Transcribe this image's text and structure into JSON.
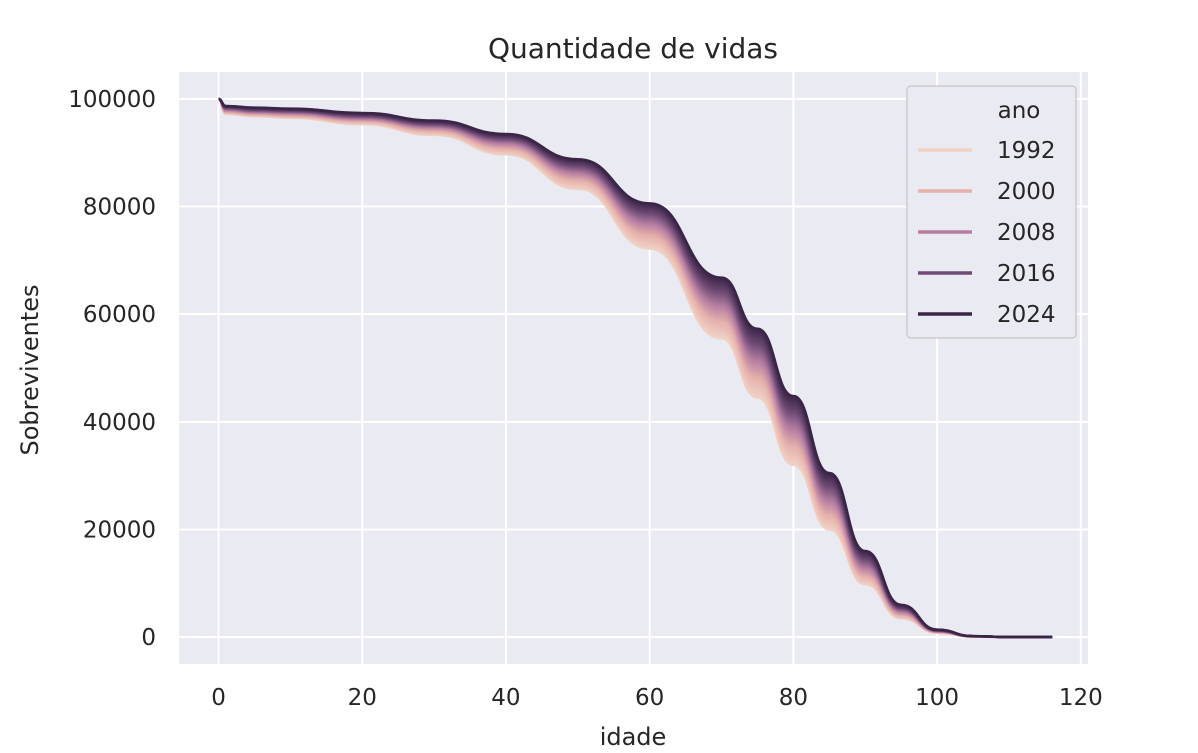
{
  "chart_data": {
    "type": "line",
    "title": "Quantidade de vidas",
    "xlabel": "idade",
    "ylabel": "Sobreviventes",
    "xlim": [
      -5.5,
      121
    ],
    "ylim": [
      -5000,
      105000
    ],
    "xticks": [
      0,
      20,
      40,
      60,
      80,
      100,
      120
    ],
    "yticks": [
      0,
      20000,
      40000,
      60000,
      80000,
      100000
    ],
    "grid": true,
    "background": "#eaeaf2",
    "legend": {
      "title": "ano",
      "placement": "top-right",
      "entries": [
        {
          "label": "1992",
          "color": "#efd2c5"
        },
        {
          "label": "2000",
          "color": "#e6b1ab"
        },
        {
          "label": "2008",
          "color": "#b77ea2"
        },
        {
          "label": "2016",
          "color": "#6e4a74"
        },
        {
          "label": "2024",
          "color": "#3a2547"
        }
      ]
    },
    "series_note_years": [
      1992,
      2024
    ],
    "series": [
      {
        "name": "1992",
        "color": "#efd2c5",
        "values": [
          [
            0,
            100000
          ],
          [
            1,
            97200
          ],
          [
            5,
            96800
          ],
          [
            10,
            96500
          ],
          [
            20,
            95300
          ],
          [
            30,
            93300
          ],
          [
            40,
            89700
          ],
          [
            50,
            83300
          ],
          [
            60,
            72200
          ],
          [
            70,
            55500
          ],
          [
            75,
            44500
          ],
          [
            80,
            32000
          ],
          [
            85,
            20000
          ],
          [
            90,
            9800
          ],
          [
            95,
            3500
          ],
          [
            100,
            800
          ],
          [
            105,
            100
          ],
          [
            110,
            5
          ],
          [
            116,
            0
          ]
        ]
      },
      {
        "name": "2000",
        "color": "#e6b1ab",
        "values": [
          [
            0,
            100000
          ],
          [
            1,
            97600
          ],
          [
            5,
            97200
          ],
          [
            10,
            96900
          ],
          [
            20,
            95900
          ],
          [
            30,
            94100
          ],
          [
            40,
            90800
          ],
          [
            50,
            84900
          ],
          [
            60,
            74600
          ],
          [
            70,
            58600
          ],
          [
            75,
            48000
          ],
          [
            80,
            35300
          ],
          [
            85,
            22600
          ],
          [
            90,
            11300
          ],
          [
            95,
            4100
          ],
          [
            100,
            950
          ],
          [
            105,
            120
          ],
          [
            110,
            6
          ],
          [
            116,
            0
          ]
        ]
      },
      {
        "name": "2008",
        "color": "#b77ea2",
        "values": [
          [
            0,
            100000
          ],
          [
            1,
            98000
          ],
          [
            5,
            97600
          ],
          [
            10,
            97400
          ],
          [
            20,
            96400
          ],
          [
            30,
            94800
          ],
          [
            40,
            91800
          ],
          [
            50,
            86300
          ],
          [
            60,
            76800
          ],
          [
            70,
            61500
          ],
          [
            75,
            51300
          ],
          [
            80,
            38600
          ],
          [
            85,
            25300
          ],
          [
            90,
            12900
          ],
          [
            95,
            4800
          ],
          [
            100,
            1100
          ],
          [
            105,
            140
          ],
          [
            110,
            7
          ],
          [
            116,
            0
          ]
        ]
      },
      {
        "name": "2016",
        "color": "#6e4a74",
        "values": [
          [
            0,
            100000
          ],
          [
            1,
            98400
          ],
          [
            5,
            98000
          ],
          [
            10,
            97800
          ],
          [
            20,
            96900
          ],
          [
            30,
            95400
          ],
          [
            40,
            92700
          ],
          [
            50,
            87600
          ],
          [
            60,
            78800
          ],
          [
            70,
            64200
          ],
          [
            75,
            54400
          ],
          [
            80,
            41800
          ],
          [
            85,
            28000
          ],
          [
            90,
            14500
          ],
          [
            95,
            5400
          ],
          [
            100,
            1250
          ],
          [
            105,
            160
          ],
          [
            110,
            8
          ],
          [
            116,
            0
          ]
        ]
      },
      {
        "name": "2024",
        "color": "#3a2547",
        "values": [
          [
            0,
            100000
          ],
          [
            1,
            98700
          ],
          [
            5,
            98400
          ],
          [
            10,
            98200
          ],
          [
            20,
            97400
          ],
          [
            30,
            96000
          ],
          [
            40,
            93500
          ],
          [
            50,
            88800
          ],
          [
            60,
            80600
          ],
          [
            70,
            66800
          ],
          [
            75,
            57300
          ],
          [
            80,
            44800
          ],
          [
            85,
            30500
          ],
          [
            90,
            16000
          ],
          [
            95,
            6000
          ],
          [
            100,
            1400
          ],
          [
            105,
            180
          ],
          [
            110,
            9
          ],
          [
            116,
            0
          ]
        ]
      }
    ]
  }
}
